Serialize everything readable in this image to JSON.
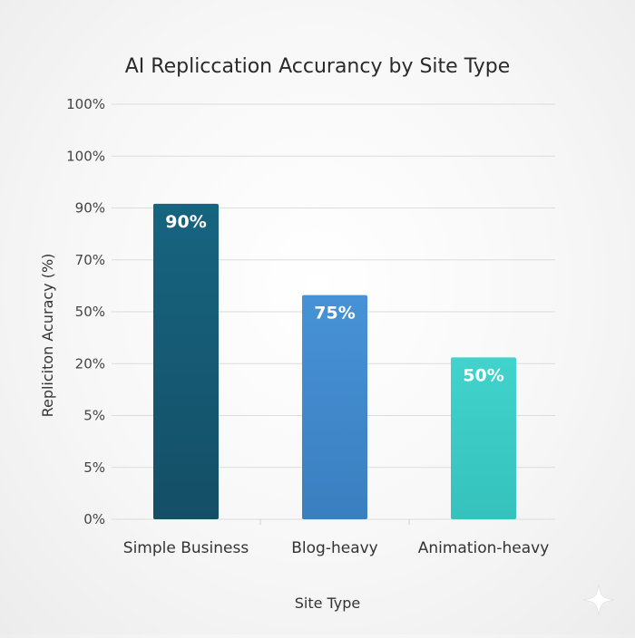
{
  "chart_data": {
    "type": "bar",
    "title": "AI Replicc­ation Accurancy by Site Type",
    "xlabel": "Site Type",
    "ylabel": "Repliciton Acuracy (%)",
    "y_tick_labels": [
      "100%",
      "100%",
      "90%",
      "70%",
      "50%",
      "20%",
      "5%",
      "5%",
      "0%"
    ],
    "ylim": [
      0,
      100
    ],
    "grid": true,
    "categories": [
      "Simple Business",
      "Blog-heavy",
      "Animation-heavy"
    ],
    "values": [
      90,
      75,
      50
    ],
    "data_labels": [
      "90%",
      "75%",
      "50%"
    ],
    "bar_heights_pct": [
      76,
      54,
      39
    ],
    "colors": {
      "bars": [
        [
          "#176480",
          "#144f66"
        ],
        [
          "#4792d6",
          "#3a7fc0"
        ],
        [
          "#40d3cc",
          "#36c2bc"
        ]
      ]
    }
  }
}
